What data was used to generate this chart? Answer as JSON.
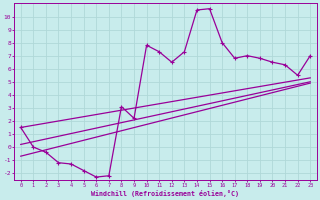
{
  "xlabel": "Windchill (Refroidissement éolien,°C)",
  "background_color": "#c8ecec",
  "grid_color": "#b0d8d8",
  "line_color": "#990099",
  "x_data": [
    0,
    1,
    2,
    3,
    4,
    5,
    6,
    7,
    8,
    9,
    10,
    11,
    12,
    13,
    14,
    15,
    16,
    17,
    18,
    19,
    20,
    21,
    22,
    23
  ],
  "y_main": [
    1.5,
    0.0,
    -0.4,
    -1.2,
    -1.3,
    -1.8,
    -2.3,
    -2.2,
    3.1,
    2.2,
    7.8,
    7.3,
    6.5,
    7.3,
    10.5,
    10.6,
    8.0,
    6.8,
    7.0,
    6.8,
    6.5,
    6.3,
    5.5,
    7.0
  ],
  "line1_x0": 0,
  "line1_y0": 1.5,
  "line1_x1": 23,
  "line1_y1": 5.3,
  "line2_x0": 0,
  "line2_y0": 0.2,
  "line2_x1": 23,
  "line2_y1": 5.0,
  "line3_x0": 0,
  "line3_y0": -0.7,
  "line3_x1": 23,
  "line3_y1": 4.9,
  "ylim": [
    -2.5,
    11.0
  ],
  "xlim": [
    -0.5,
    23.5
  ],
  "yticks": [
    -2,
    -1,
    0,
    1,
    2,
    3,
    4,
    5,
    6,
    7,
    8,
    9,
    10
  ],
  "xticks": [
    0,
    1,
    2,
    3,
    4,
    5,
    6,
    7,
    8,
    9,
    10,
    11,
    12,
    13,
    14,
    15,
    16,
    17,
    18,
    19,
    20,
    21,
    22,
    23
  ],
  "marker": "4",
  "markersize": 3.0,
  "linewidth": 0.9
}
